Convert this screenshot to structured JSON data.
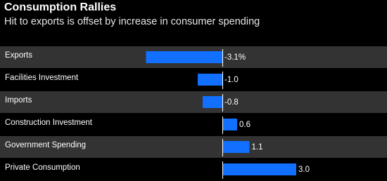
{
  "chart_data": {
    "type": "bar",
    "orientation": "horizontal",
    "title": "Consumption Rallies",
    "subtitle": "Hit to exports is offset by increase in consumer spending",
    "categories": [
      "Exports",
      "Facilities Investment",
      "Imports",
      "Construction Investment",
      "Government Spending",
      "Private Consumption"
    ],
    "values": [
      -3.1,
      -1.0,
      -0.8,
      0.6,
      1.1,
      3.0
    ],
    "value_labels": [
      "-3.1%",
      "-1.0",
      "-0.8",
      "0.6",
      "1.1",
      "3.0"
    ],
    "color": "#1170ff"
  }
}
